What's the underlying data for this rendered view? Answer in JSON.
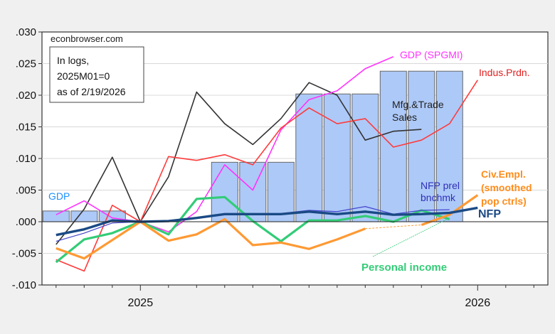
{
  "chart_data": {
    "type": "line",
    "watermark": "econbrowser.com",
    "note_lines": [
      "In logs,",
      "2025M01=0",
      "as of 2/19/2026"
    ],
    "x_unit": "month",
    "x_months": [
      "2024-10",
      "2024-11",
      "2024-12",
      "2025-01",
      "2025-02",
      "2025-03",
      "2025-04",
      "2025-05",
      "2025-06",
      "2025-07",
      "2025-08",
      "2025-09",
      "2025-10",
      "2025-11",
      "2025-12",
      "2026-01"
    ],
    "x_tick_labels": [
      {
        "month": "2025-01",
        "label": "2025"
      },
      {
        "month": "2026-01",
        "label": "2026"
      }
    ],
    "xlim": [
      "2024-09-15",
      "2026-03-15"
    ],
    "ylim": [
      -0.01,
      0.03
    ],
    "y_ticks": [
      -0.01,
      -0.005,
      0.0,
      0.005,
      0.01,
      0.015,
      0.02,
      0.025,
      0.03
    ],
    "y_tick_labels": [
      "-.010",
      "-.005",
      ".000",
      ".005",
      ".010",
      ".015",
      ".020",
      ".025",
      ".030"
    ],
    "grid": "horizontal",
    "bars": {
      "name": "GDP",
      "color": "#adc9f8",
      "values": [
        0.0017,
        0.0017,
        0.0017,
        0,
        0,
        0,
        0.0094,
        0.0094,
        0.0094,
        0.0202,
        0.0202,
        0.0202,
        0.0238,
        0.0238,
        0.0238,
        null
      ]
    },
    "series": [
      {
        "name": "Mfg.&Trade Sales",
        "color": "#333333",
        "width": 1.6,
        "values": [
          -0.0036,
          0.002,
          0.0102,
          0,
          0.0071,
          0.0205,
          0.0155,
          0.0122,
          0.0163,
          0.022,
          0.02,
          0.0129,
          0.0143,
          0.0146,
          null,
          null
        ]
      },
      {
        "name": "GDP (SPGMI)",
        "color": "#ff33ff",
        "width": 1.6,
        "values": [
          0.0011,
          0.0033,
          0.0006,
          0,
          -0.0016,
          0.0016,
          0.009,
          0.005,
          0.0145,
          0.0193,
          0.0207,
          0.0242,
          0.0261,
          null,
          null,
          null
        ]
      },
      {
        "name": "Indus.Prdn.",
        "color": "#ff3b3b",
        "width": 1.6,
        "values": [
          -0.006,
          -0.0078,
          0.0026,
          0,
          0.0103,
          0.0097,
          0.0106,
          0.009,
          0.0148,
          0.018,
          0.0155,
          0.0163,
          0.0118,
          0.0129,
          0.0155,
          0.0224
        ]
      },
      {
        "name": "Personal income",
        "color": "#33cc77",
        "width": 3.2,
        "values": [
          -0.0064,
          -0.0028,
          -0.0018,
          0,
          -0.002,
          0.0036,
          0.0039,
          0.0001,
          -0.0031,
          0.0002,
          0.0002,
          0.0009,
          0.0,
          0.0018,
          0.0004,
          null
        ]
      },
      {
        "name": "Civ.Empl. (smoothed pop ctrls)",
        "color": "#ff9933",
        "width": 3.2,
        "values": [
          -0.0042,
          -0.0058,
          -0.0029,
          0,
          -0.003,
          -0.002,
          0.0004,
          -0.0037,
          -0.0033,
          -0.0043,
          -0.0028,
          -0.0011,
          null,
          -0.0005,
          0.0011,
          0.0042
        ]
      },
      {
        "name": "NFP prel bnchmk",
        "color": "#4444cc",
        "width": 1.2,
        "values": [
          -0.0031,
          -0.0018,
          -0.0002,
          0,
          0.0001,
          0.0005,
          0.0011,
          0.0012,
          0.0013,
          0.0018,
          0.0016,
          0.0024,
          0.0012,
          0.0018,
          0.0019,
          null
        ]
      },
      {
        "name": "NFP",
        "color": "#1a4a85",
        "width": 3.4,
        "values": [
          -0.0021,
          -0.0012,
          0.0002,
          0,
          0.0001,
          0.0006,
          0.0012,
          0.0012,
          0.0012,
          0.0016,
          0.0012,
          0.0016,
          0.0011,
          0.0012,
          0.0014,
          0.0022
        ]
      }
    ],
    "annotations": {
      "gdp": "GDP",
      "gdp_spgmi": "GDP (SPGMI)",
      "indus": "Indus.Prdn.",
      "mfg_1": "Mfg.&Trade",
      "mfg_2": "Sales",
      "nfp_prel_1": "NFP prel",
      "nfp_prel_2": "bnchmk",
      "civ_1": "Civ.Empl.",
      "civ_2": "(smoothed",
      "civ_3": "pop ctrls)",
      "nfp": "NFP",
      "personal_income": "Personal income"
    }
  }
}
